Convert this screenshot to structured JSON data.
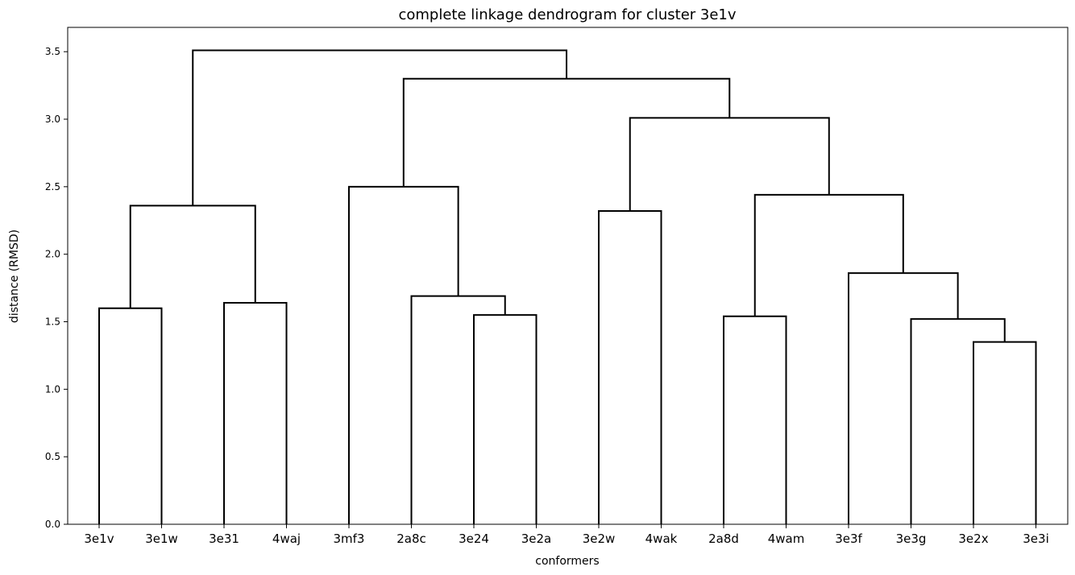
{
  "chart_data": {
    "type": "dendrogram",
    "title": "complete linkage dendrogram for cluster 3e1v",
    "xlabel": "conformers",
    "ylabel": "distance (RMSD)",
    "ylim": [
      0,
      3.68
    ],
    "yticks": [
      "0.0",
      "0.5",
      "1.0",
      "1.5",
      "2.0",
      "2.5",
      "3.0",
      "3.5"
    ],
    "grid": false,
    "leaves": [
      "3e1v",
      "3e1w",
      "3e31",
      "4waj",
      "3mf3",
      "2a8c",
      "3e24",
      "3e2a",
      "3e2w",
      "4wak",
      "2a8d",
      "4wam",
      "3e3f",
      "3e3g",
      "3e2x",
      "3e3i"
    ],
    "merges": [
      {
        "left": "3e1v",
        "right": "3e1w",
        "height": 1.6
      },
      {
        "left": "3e31",
        "right": "4waj",
        "height": 1.64
      },
      {
        "left": "3e24",
        "right": "3e2a",
        "height": 1.55
      },
      {
        "left": "2a8c",
        "right": "3e24+3e2a",
        "height": 1.69
      },
      {
        "left": "3mf3",
        "right": "2a8c+3e24+3e2a",
        "height": 2.5
      },
      {
        "left": "3e2w",
        "right": "4wak",
        "height": 2.32
      },
      {
        "left": "2a8d",
        "right": "4wam",
        "height": 1.54
      },
      {
        "left": "3e2x",
        "right": "3e3i",
        "height": 1.35
      },
      {
        "left": "3e3g",
        "right": "3e2x+3e3i",
        "height": 1.52
      },
      {
        "left": "3e3f",
        "right": "3e3g+3e2x+3e3i",
        "height": 1.86
      },
      {
        "left": "2a8d+4wam",
        "right": "3e3f+3e3g+3e2x+3e3i",
        "height": 2.44
      },
      {
        "left": "3e2w+4wak",
        "right": "2a8d+4wam+3e3f+3e3g+3e2x+3e3i",
        "height": 3.01
      },
      {
        "left": "3mf3+2a8c+3e24+3e2a",
        "right": "3e2w+4wak+2a8d+4wam+3e3f+3e3g+3e2x+3e3i",
        "height": 3.3
      },
      {
        "left": "3e1v+3e1w",
        "right": "3e31+4waj",
        "height": 2.36
      },
      {
        "left": "3e1v+3e1w+3e31+4waj",
        "right": "3mf3+2a8c+3e24+3e2a+3e2w+4wak+2a8d+4wam+3e3f+3e3g+3e2x+3e3i",
        "height": 3.51
      }
    ]
  }
}
